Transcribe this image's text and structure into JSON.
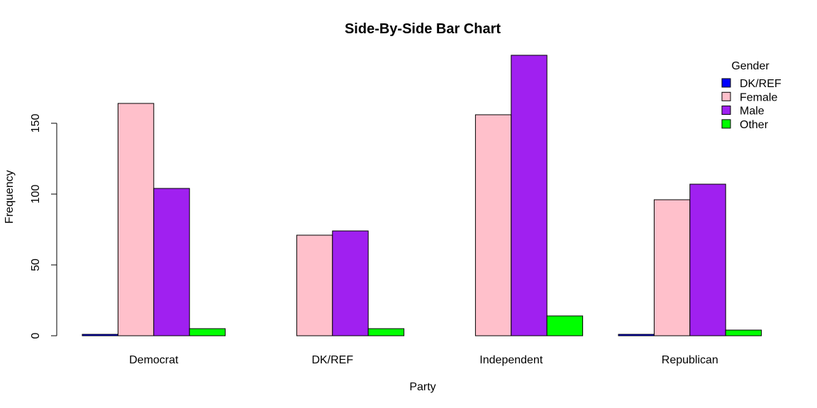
{
  "chart_data": {
    "type": "bar",
    "title": "Side-By-Side Bar Chart",
    "xlabel": "Party",
    "ylabel": "Frequency",
    "categories": [
      "Democrat",
      "DK/REF",
      "Independent",
      "Republican"
    ],
    "ylim": [
      0,
      200
    ],
    "yticks": [
      0,
      50,
      100,
      150
    ],
    "legend": {
      "title": "Gender",
      "position": "top-right"
    },
    "series": [
      {
        "name": "DK/REF",
        "color": "#0000ff",
        "values": [
          1,
          0,
          0,
          1
        ]
      },
      {
        "name": "Female",
        "color": "#ffc0cb",
        "values": [
          164,
          71,
          156,
          96
        ]
      },
      {
        "name": "Male",
        "color": "#a020f0",
        "values": [
          104,
          74,
          198,
          107
        ]
      },
      {
        "name": "Other",
        "color": "#00ff00",
        "values": [
          5,
          5,
          14,
          4
        ]
      }
    ]
  }
}
